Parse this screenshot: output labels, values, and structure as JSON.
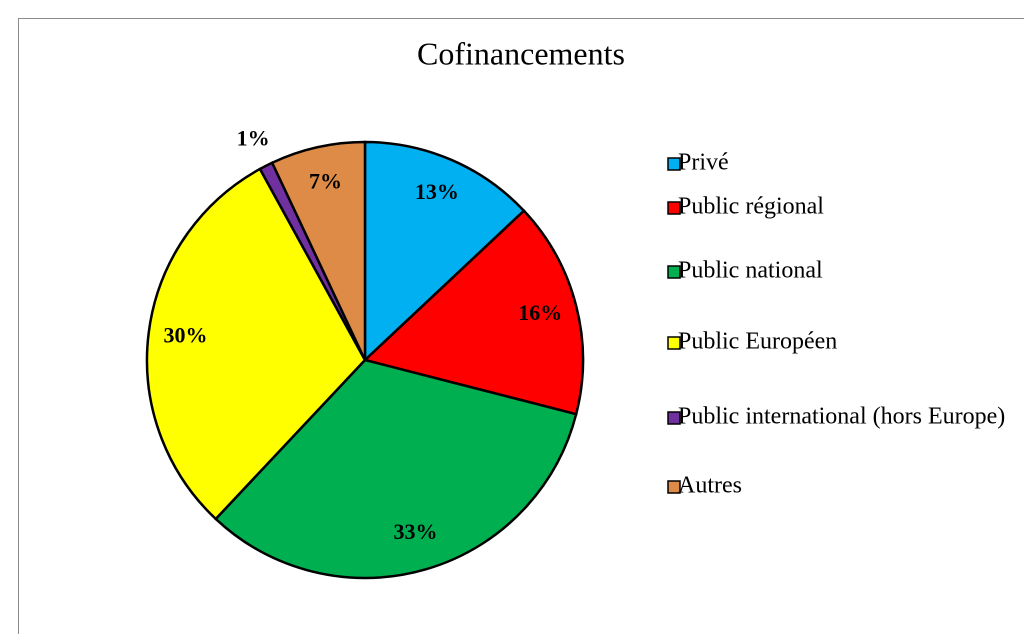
{
  "chart_data": {
    "type": "pie",
    "title": "Cofinancements",
    "categories": [
      "Privé",
      "Public régional",
      "Public national",
      "Public Européen",
      "Public international (hors Europe)",
      "Autres"
    ],
    "values": [
      13,
      16,
      33,
      30,
      1,
      7
    ],
    "value_labels": [
      "13%",
      "16%",
      "33%",
      "30%",
      "1%",
      "7%"
    ],
    "colors": [
      "#00b0f0",
      "#ff0000",
      "#00b050",
      "#ffff00",
      "#7030a0",
      "#dd8b47"
    ],
    "legend": "right"
  }
}
